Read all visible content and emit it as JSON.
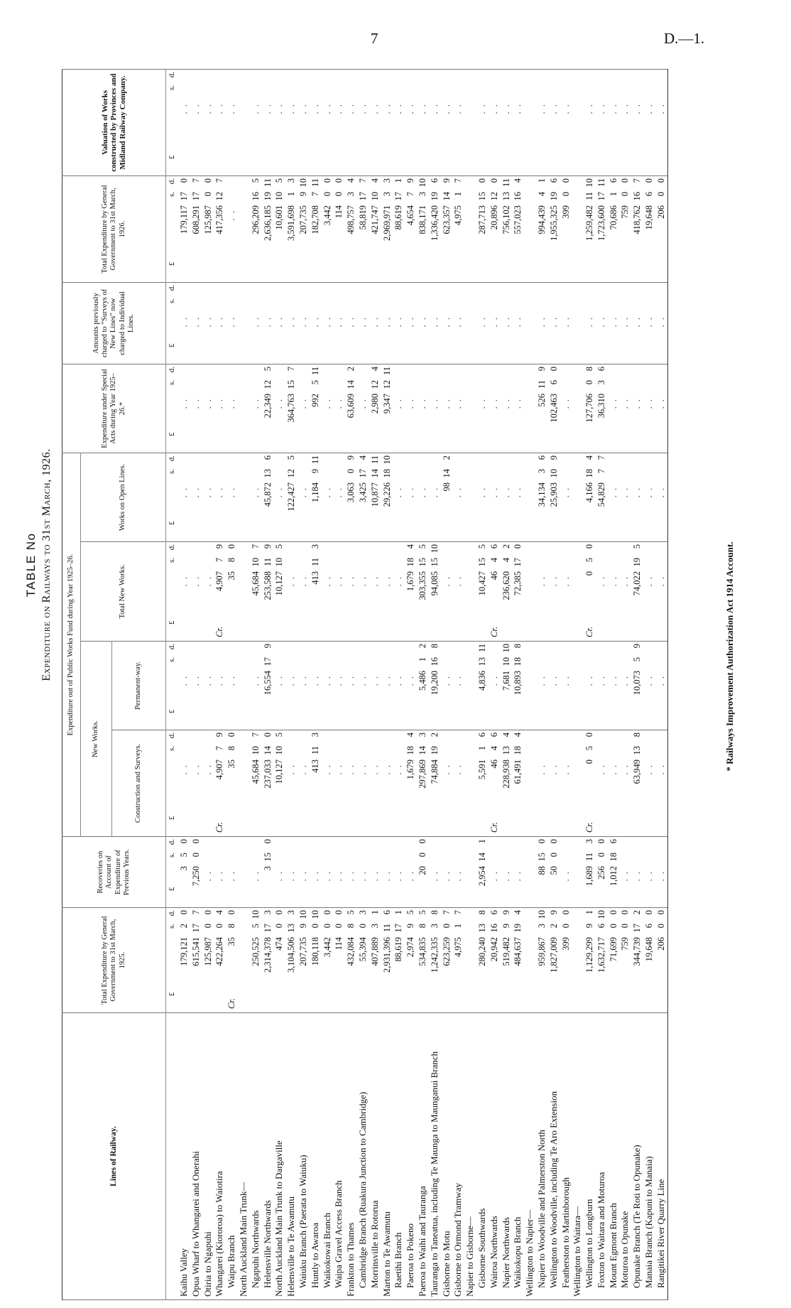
{
  "page": {
    "number": "7",
    "reference": "D.—1."
  },
  "title": {
    "line1": "TABLE No",
    "line2": "Expenditure on Railways to 31st March, 1926."
  },
  "headers": {
    "lines": "Lines of Railway.",
    "total_1925": "Total Expenditure by General Government to 31st March, 1925.",
    "recoveries": "Recoveries on Account of Expenditure of Previous Years.",
    "pwf_group": "Expenditure out of Public Works Fund during Year 1925–26.",
    "new_works": "New Works.",
    "construction": "Construction and Surveys.",
    "permanent_way": "Permanent-way.",
    "total_new_works": "Total New Works.",
    "open_lines": "Works on Open Lines.",
    "special_acts": "Expenditure under Special Acts during Year 1925–26.*",
    "amounts_previously": "Amounts previously charged to “Surveys of New Lines” now charged to Individual Lines.",
    "total_1926": "Total Expenditure by General Government to 31st March, 1926.",
    "valuation": "Valuation of Works constructed by Provinces and Midland Railway Company."
  },
  "units": {
    "pounds": "£",
    "shillings": "s.",
    "pence": "d."
  },
  "rows": [
    {
      "name": "Kaihu Valley",
      "indent": 0,
      "cells": [
        [
          "179,121",
          "2",
          "0"
        ],
        [
          "3",
          "5",
          "0"
        ],
        null,
        null,
        null,
        null,
        null,
        null,
        [
          "179,117",
          "17",
          "0"
        ],
        null
      ]
    },
    {
      "name": "Opua Wharf to Whangarei and Onerahi",
      "indent": 0,
      "cells": [
        [
          "615,541",
          "17",
          "7"
        ],
        [
          "7,250",
          "0",
          "0"
        ],
        null,
        null,
        null,
        null,
        null,
        null,
        [
          "608,291",
          "17",
          "7"
        ],
        null
      ]
    },
    {
      "name": "Otiria to Ngapuhi",
      "indent": 0,
      "cells": [
        [
          "125,987",
          "0",
          "0"
        ],
        null,
        null,
        null,
        null,
        null,
        null,
        null,
        [
          "125,987",
          "0",
          "0"
        ],
        null
      ]
    },
    {
      "name": "Whangarei (Kiororoa) to Waiotira",
      "indent": 0,
      "cells": [
        [
          "422,264",
          "0",
          "4"
        ],
        null,
        [
          "Cr.",
          "4,907",
          "7",
          "9"
        ],
        null,
        [
          "Cr.",
          "4,907",
          "7",
          "9"
        ],
        null,
        null,
        null,
        [
          "417,356",
          "12",
          "7"
        ],
        null
      ]
    },
    {
      "name": "Waipu Branch",
      "indent": 1,
      "cells": [
        [
          "Cr.",
          "35",
          "8",
          "0"
        ],
        null,
        [
          "35",
          "8",
          "0"
        ],
        null,
        [
          "35",
          "8",
          "0"
        ],
        null,
        null,
        null,
        null,
        null
      ]
    },
    {
      "name": "North Auckland Main Trunk—",
      "indent": 0,
      "cells": []
    },
    {
      "name": "Ngapuhi Northwards",
      "indent": 1,
      "cells": [
        [
          "250,525",
          "5",
          "10"
        ],
        null,
        [
          "45,684",
          "10",
          "7"
        ],
        null,
        [
          "45,684",
          "10",
          "7"
        ],
        null,
        null,
        null,
        [
          "296,209",
          "16",
          "5"
        ],
        null
      ]
    },
    {
      "name": "Helensville Northwards",
      "indent": 1,
      "cells": [
        [
          "2,314,378",
          "17",
          "3"
        ],
        [
          "3",
          "15",
          "0"
        ],
        [
          "237,033",
          "14",
          "0"
        ],
        [
          "16,554",
          "17",
          "9"
        ],
        [
          "253,588",
          "11",
          "9"
        ],
        [
          "45,872",
          "13",
          "6"
        ],
        [
          "22,349",
          "12",
          "5"
        ],
        null,
        [
          "2,636,185",
          "19",
          "11"
        ],
        null
      ]
    },
    {
      "name": "North Auckland Main Trunk to Dargaville",
      "indent": 0,
      "cells": [
        [
          "474",
          "0",
          "0"
        ],
        null,
        [
          "10,127",
          "10",
          "5"
        ],
        null,
        [
          "10,127",
          "10",
          "5"
        ],
        null,
        null,
        null,
        [
          "10,601",
          "10",
          "5"
        ],
        null
      ]
    },
    {
      "name": "Helensville to Te Awamutu",
      "indent": 0,
      "cells": [
        [
          "3,104,506",
          "13",
          "3"
        ],
        null,
        null,
        null,
        null,
        [
          "122,427",
          "12",
          "5"
        ],
        [
          "364,763",
          "15",
          "7"
        ],
        null,
        [
          "3,591,698",
          "1",
          "3"
        ],
        null
      ]
    },
    {
      "name": "Waiuku Branch (Paerata to Waiuku)",
      "indent": 1,
      "cells": [
        [
          "207,735",
          "9",
          "10"
        ],
        null,
        null,
        null,
        null,
        null,
        null,
        null,
        [
          "207,735",
          "9",
          "10"
        ],
        null
      ]
    },
    {
      "name": "Huntly to Awaroa",
      "indent": 1,
      "cells": [
        [
          "180,118",
          "0",
          "10"
        ],
        null,
        [
          "413",
          "11",
          "3"
        ],
        null,
        [
          "413",
          "11",
          "3"
        ],
        [
          "1,184",
          "9",
          "11"
        ],
        [
          "992",
          "5",
          "11"
        ],
        null,
        [
          "182,708",
          "7",
          "11"
        ],
        null
      ]
    },
    {
      "name": "Waikokowai Branch",
      "indent": 1,
      "cells": [
        [
          "3,442",
          "0",
          "0"
        ],
        null,
        null,
        null,
        null,
        null,
        null,
        null,
        [
          "3,442",
          "0",
          "0"
        ],
        null
      ]
    },
    {
      "name": "Waipa Gravel Access Branch",
      "indent": 1,
      "cells": [
        [
          "114",
          "0",
          "0"
        ],
        null,
        null,
        null,
        null,
        null,
        null,
        null,
        [
          "114",
          "0",
          "0"
        ],
        null
      ]
    },
    {
      "name": "Frankton to Thames",
      "indent": 0,
      "cells": [
        [
          "432,084",
          "8",
          "5"
        ],
        null,
        null,
        null,
        null,
        [
          "3,063",
          "0",
          "9"
        ],
        [
          "63,609",
          "14",
          "2"
        ],
        null,
        [
          "498,757",
          "3",
          "4"
        ],
        null
      ]
    },
    {
      "name": "Cambridge Branch (Ruakura Junction to Cambridge)",
      "indent": 1,
      "cells": [
        [
          "55,394",
          "0",
          "3"
        ],
        null,
        null,
        null,
        null,
        [
          "3,425",
          "17",
          "4"
        ],
        null,
        null,
        [
          "58,819",
          "17",
          "7"
        ],
        null
      ]
    },
    {
      "name": "Morrinsville to Rotorua",
      "indent": 1,
      "cells": [
        [
          "407,889",
          "3",
          "1"
        ],
        null,
        null,
        null,
        null,
        [
          "10,877",
          "14",
          "11"
        ],
        [
          "2,980",
          "12",
          "4"
        ],
        null,
        [
          "421,747",
          "10",
          "4"
        ],
        null
      ]
    },
    {
      "name": "Marton to Te Awamutu",
      "indent": 0,
      "cells": [
        [
          "2,931,396",
          "11",
          "6"
        ],
        null,
        null,
        null,
        null,
        [
          "29,226",
          "18",
          "10"
        ],
        [
          "9,347",
          "12",
          "11"
        ],
        null,
        [
          "2,969,971",
          "3",
          "3"
        ],
        null
      ]
    },
    {
      "name": "Raetihi Branch",
      "indent": 1,
      "cells": [
        [
          "88,619",
          "17",
          "1"
        ],
        null,
        null,
        null,
        null,
        null,
        null,
        null,
        [
          "88,619",
          "17",
          "1"
        ],
        null
      ]
    },
    {
      "name": "Paeroa to Pokeno",
      "indent": 1,
      "cells": [
        [
          "2,974",
          "9",
          "5"
        ],
        null,
        [
          "1,679",
          "18",
          "4"
        ],
        null,
        [
          "1,679",
          "18",
          "4"
        ],
        null,
        null,
        null,
        [
          "4,654",
          "7",
          "9"
        ],
        null
      ]
    },
    {
      "name": "Paeroa to Waihi and Tauranga",
      "indent": 0,
      "cells": [
        [
          "534,835",
          "8",
          "5"
        ],
        [
          "20",
          "0",
          "0"
        ],
        [
          "297,869",
          "14",
          "3"
        ],
        [
          "5,486",
          "1",
          "2"
        ],
        [
          "303,355",
          "15",
          "5"
        ],
        null,
        null,
        null,
        [
          "838,171",
          "3",
          "10"
        ],
        null
      ]
    },
    {
      "name": "Tauranga to Taneatua, including Te Maunga to Maunganui Branch",
      "indent": 0,
      "cells": [
        [
          "1,242,335",
          "3",
          "8"
        ],
        null,
        [
          "74,884",
          "19",
          "2"
        ],
        [
          "19,200",
          "16",
          "8"
        ],
        [
          "94,085",
          "15",
          "10"
        ],
        null,
        null,
        null,
        [
          "1,336,420",
          "19",
          "6"
        ],
        null
      ]
    },
    {
      "name": "Gisborne to Motu",
      "indent": 0,
      "cells": [
        [
          "623,259",
          "0",
          "7"
        ],
        null,
        null,
        null,
        null,
        [
          "98",
          "14",
          "2"
        ],
        null,
        null,
        [
          "623,357",
          "14",
          "9"
        ],
        null
      ]
    },
    {
      "name": "Gisborne to Ormond Tramway",
      "indent": 0,
      "cells": [
        [
          "4,975",
          "1",
          "7"
        ],
        null,
        null,
        null,
        null,
        null,
        null,
        null,
        [
          "4,975",
          "1",
          "7"
        ],
        null
      ]
    },
    {
      "name": "Napier to Gisborne—",
      "indent": 0,
      "cells": []
    },
    {
      "name": "Gisborne Southwards",
      "indent": 1,
      "cells": [
        [
          "280,240",
          "13",
          "8"
        ],
        [
          "2,954",
          "14",
          "1"
        ],
        [
          "5,591",
          "1",
          "6"
        ],
        [
          "4,836",
          "13",
          "11"
        ],
        [
          "10,427",
          "15",
          "5"
        ],
        null,
        null,
        null,
        [
          "287,713",
          "15",
          "0"
        ],
        null
      ]
    },
    {
      "name": "Wairoa Northwards",
      "indent": 1,
      "cells": [
        [
          "20,942",
          "16",
          "6"
        ],
        null,
        [
          "Cr.",
          "46",
          "4",
          "6"
        ],
        null,
        [
          "Cr.",
          "46",
          "4",
          "6"
        ],
        null,
        null,
        null,
        [
          "20,896",
          "12",
          "0"
        ],
        null
      ]
    },
    {
      "name": "Napier Northwards",
      "indent": 1,
      "cells": [
        [
          "519,482",
          "9",
          "9"
        ],
        null,
        [
          "228,938",
          "13",
          "4"
        ],
        [
          "7,681",
          "10",
          "10"
        ],
        [
          "236,620",
          "4",
          "2"
        ],
        null,
        null,
        null,
        [
          "756,102",
          "13",
          "11"
        ],
        null
      ]
    },
    {
      "name": "Waikokopu Branch",
      "indent": 1,
      "cells": [
        [
          "484,637",
          "19",
          "4"
        ],
        null,
        [
          "61,491",
          "18",
          "4"
        ],
        [
          "10,893",
          "18",
          "8"
        ],
        [
          "72,385",
          "17",
          "0"
        ],
        null,
        null,
        null,
        [
          "557,023",
          "16",
          "4"
        ],
        null
      ]
    },
    {
      "name": "Wellington to Napier—",
      "indent": 0,
      "cells": []
    },
    {
      "name": "Napier to Woodville and Palmerston North",
      "indent": 1,
      "cells": [
        [
          "959,867",
          "3",
          "10"
        ],
        [
          "88",
          "15",
          "0"
        ],
        null,
        null,
        null,
        [
          "34,134",
          "3",
          "6"
        ],
        [
          "526",
          "11",
          "9"
        ],
        null,
        [
          "994,439",
          "4",
          "1"
        ],
        null
      ]
    },
    {
      "name": "Wellington to Woodville, including Te Aro Extension",
      "indent": 1,
      "cells": [
        [
          "1,827,009",
          "2",
          "9"
        ],
        [
          "50",
          "0",
          "0"
        ],
        null,
        null,
        null,
        [
          "25,903",
          "10",
          "9"
        ],
        [
          "102,463",
          "6",
          "0"
        ],
        null,
        [
          "1,955,325",
          "19",
          "6"
        ],
        null
      ]
    },
    {
      "name": "Featherston to Martinborough",
      "indent": 1,
      "cells": [
        [
          "399",
          "0",
          "0"
        ],
        null,
        null,
        null,
        null,
        null,
        null,
        null,
        [
          "399",
          "0",
          "0"
        ],
        null
      ]
    },
    {
      "name": "Wellington to Waitara—",
      "indent": 0,
      "cells": []
    },
    {
      "name": "Wellington to Longburn",
      "indent": 1,
      "cells": [
        [
          "1,129,299",
          "9",
          "1"
        ],
        [
          "1,689",
          "11",
          "3"
        ],
        [
          "Cr.",
          "0",
          "5",
          "0"
        ],
        null,
        [
          "Cr.",
          "0",
          "5",
          "0"
        ],
        [
          "4,166",
          "18",
          "4"
        ],
        [
          "127,706",
          "0",
          "8"
        ],
        null,
        [
          "1,259,482",
          "11",
          "10"
        ],
        null
      ]
    },
    {
      "name": "Foxton to Waitara and Moturoa",
      "indent": 1,
      "cells": [
        [
          "1,632,717",
          "6",
          "10"
        ],
        [
          "256",
          "0",
          "0"
        ],
        null,
        null,
        null,
        [
          "54,829",
          "7",
          "7"
        ],
        [
          "36,310",
          "3",
          "6"
        ],
        null,
        [
          "1,723,600",
          "17",
          "11"
        ],
        null
      ]
    },
    {
      "name": "Mount Egmont Branch",
      "indent": 1,
      "cells": [
        [
          "71,699",
          "0",
          "0"
        ],
        [
          "1,012",
          "18",
          "6"
        ],
        null,
        null,
        null,
        null,
        null,
        null,
        [
          "70,686",
          "1",
          "6"
        ],
        null
      ]
    },
    {
      "name": "Moturoa to Opunake",
      "indent": 1,
      "cells": [
        [
          "759",
          "0",
          "0"
        ],
        null,
        null,
        null,
        null,
        null,
        null,
        null,
        [
          "759",
          "0",
          "0"
        ],
        null
      ]
    },
    {
      "name": "Opunake Branch (Te Roti to Opunake)",
      "indent": 1,
      "cells": [
        [
          "344,739",
          "17",
          "2"
        ],
        null,
        [
          "63,949",
          "13",
          "8"
        ],
        [
          "10,073",
          "5",
          "9"
        ],
        [
          "74,022",
          "19",
          "5"
        ],
        null,
        null,
        null,
        [
          "418,762",
          "16",
          "7"
        ],
        null
      ]
    },
    {
      "name": "Manaia Branch (Kapuni to Manaia)",
      "indent": 1,
      "cells": [
        [
          "19,648",
          "6",
          "0"
        ],
        null,
        null,
        null,
        null,
        null,
        null,
        null,
        [
          "19,648",
          "6",
          "0"
        ],
        null
      ]
    },
    {
      "name": "Rangitikei River Quarry Line",
      "indent": 1,
      "cells": [
        [
          "206",
          "0",
          "0"
        ],
        null,
        null,
        null,
        null,
        null,
        null,
        null,
        [
          "206",
          "0",
          "0"
        ],
        null
      ]
    }
  ],
  "footnote": "* Railways Improvement Authorization Act 1914 Account."
}
